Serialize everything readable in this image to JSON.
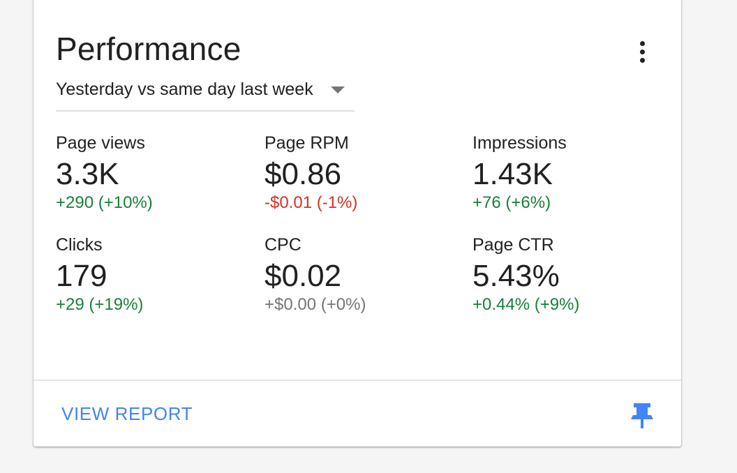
{
  "card": {
    "title": "Performance",
    "range_selector": {
      "selected": "Yesterday vs same day last week"
    },
    "metrics": [
      {
        "label": "Page views",
        "value": "3.3K",
        "change": "+290 (+10%)",
        "trend": "positive"
      },
      {
        "label": "Page RPM",
        "value": "$0.86",
        "change": "-$0.01 (-1%)",
        "trend": "negative"
      },
      {
        "label": "Impressions",
        "value": "1.43K",
        "change": "+76 (+6%)",
        "trend": "positive"
      },
      {
        "label": "Clicks",
        "value": "179",
        "change": "+29 (+19%)",
        "trend": "positive"
      },
      {
        "label": "CPC",
        "value": "$0.02",
        "change": "+$0.00 (+0%)",
        "trend": "neutral"
      },
      {
        "label": "Page CTR",
        "value": "5.43%",
        "change": "+0.44% (+9%)",
        "trend": "positive"
      }
    ],
    "footer": {
      "view_report_label": "VIEW REPORT"
    }
  },
  "icons": {
    "more": "more-vert-icon",
    "dropdown": "arrow-drop-down-icon",
    "pin": "pin-icon"
  },
  "colors": {
    "positive": "#188038",
    "negative": "#d93025",
    "neutral": "#757575",
    "link": "#4285f4"
  }
}
